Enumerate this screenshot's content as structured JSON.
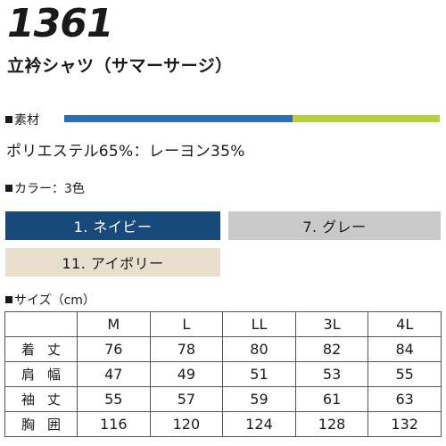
{
  "product": {
    "number": "1361",
    "name": "立衿シャツ（サマーサージ）"
  },
  "material": {
    "heading": "素材",
    "text": "ポリエステル65%：レーヨン35%",
    "colors": [
      "#2a6fb8",
      "#b4d13c"
    ],
    "polyester_share": 0.65
  },
  "colors_section": {
    "heading": "カラー：3色",
    "swatches": [
      {
        "label": "1. ネイビー",
        "color": "#17497a"
      },
      {
        "label": "7. グレー",
        "color": "#c9c9c9"
      },
      {
        "label": "11. アイボリー",
        "color": "#e8dfcf"
      }
    ]
  },
  "sizes": {
    "heading": "サイズ（cm）",
    "columns": [
      "M",
      "L",
      "LL",
      "3L",
      "4L"
    ],
    "rows": [
      {
        "label": "着丈",
        "values": [
          "76",
          "78",
          "80",
          "82",
          "84"
        ]
      },
      {
        "label": "肩幅",
        "values": [
          "47",
          "49",
          "51",
          "53",
          "55"
        ]
      },
      {
        "label": "袖丈",
        "values": [
          "55",
          "57",
          "59",
          "61",
          "63"
        ]
      },
      {
        "label": "胸囲",
        "values": [
          "116",
          "120",
          "124",
          "128",
          "132"
        ]
      }
    ]
  }
}
